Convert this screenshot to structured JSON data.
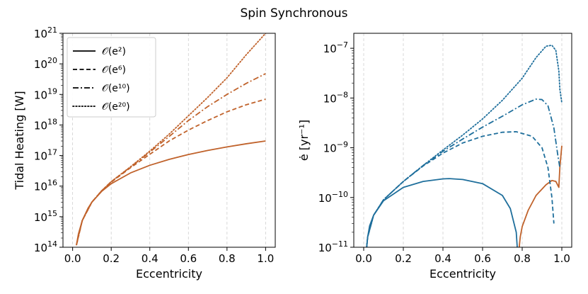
{
  "figure_title": "Spin Synchronous",
  "colors": {
    "orange": "#c0622b",
    "blue": "#1f6f9c"
  },
  "chart_data": [
    {
      "type": "line",
      "xlabel": "Eccentricity",
      "ylabel": "Tidal Heating [W]",
      "yscale": "log",
      "xlim": [
        -0.05,
        1.05
      ],
      "ylim": [
        100000000000000.0,
        1e+21
      ],
      "xticks": [
        "0.0",
        "0.2",
        "0.4",
        "0.6",
        "0.8",
        "1.0"
      ],
      "xtick_values": [
        0,
        0.2,
        0.4,
        0.6,
        0.8,
        1.0
      ],
      "ytick_exponents": [
        "14",
        "15",
        "16",
        "17",
        "18",
        "19",
        "20",
        "21"
      ],
      "grid": "vertical dashed",
      "legend_position": "upper-left",
      "legend": [
        {
          "label": "𝒪(e²)",
          "style": "solid"
        },
        {
          "label": "𝒪(e⁶)",
          "style": "dashed"
        },
        {
          "label": "𝒪(e¹⁰)",
          "style": "dashdot"
        },
        {
          "label": "𝒪(e²⁰)",
          "style": "dotted"
        }
      ],
      "series": [
        {
          "style": "solid",
          "color": "#c0622b",
          "x": [
            0.02,
            0.03,
            0.05,
            0.08,
            0.1,
            0.15,
            0.2,
            0.3,
            0.4,
            0.5,
            0.6,
            0.7,
            0.8,
            0.9,
            1.0
          ],
          "y": [
            120000000000000.0,
            270000000000000.0,
            750000000000000.0,
            1900000000000000.0,
            3000000000000000.0,
            6700000000000000.0,
            1.2e+16,
            2.7e+16,
            4.8e+16,
            7.5e+16,
            1.08e+17,
            1.47e+17,
            1.92e+17,
            2.43e+17,
            3e+17
          ]
        },
        {
          "style": "dashed",
          "color": "#c0622b",
          "x": [
            0.02,
            0.05,
            0.1,
            0.15,
            0.2,
            0.3,
            0.4,
            0.5,
            0.6,
            0.7,
            0.8,
            0.9,
            1.0
          ],
          "y": [
            120000000000000.0,
            750000000000000.0,
            3000000000000000.0,
            7000000000000000.0,
            1.35e+16,
            4e+16,
            1.1e+17,
            3e+17,
            6.8e+17,
            1.4e+18,
            2.7e+18,
            4.6e+18,
            7e+18
          ]
        },
        {
          "style": "dashdot",
          "color": "#c0622b",
          "x": [
            0.02,
            0.05,
            0.1,
            0.15,
            0.2,
            0.3,
            0.4,
            0.5,
            0.6,
            0.7,
            0.8,
            0.9,
            1.0
          ],
          "y": [
            120000000000000.0,
            750000000000000.0,
            3000000000000000.0,
            7000000000000000.0,
            1.4e+16,
            4.2e+16,
            1.3e+17,
            4.2e+17,
            1.4e+18,
            4e+18,
            1e+19,
            2.3e+19,
            4.8e+19
          ]
        },
        {
          "style": "dotted",
          "color": "#c0622b",
          "x": [
            0.02,
            0.05,
            0.1,
            0.15,
            0.2,
            0.3,
            0.4,
            0.5,
            0.6,
            0.7,
            0.8,
            0.9,
            1.0
          ],
          "y": [
            120000000000000.0,
            750000000000000.0,
            3000000000000000.0,
            7000000000000000.0,
            1.4e+16,
            4.3e+16,
            1.4e+17,
            5e+17,
            2e+18,
            8e+18,
            3.5e+19,
            2e+20,
            1e+21
          ]
        }
      ]
    },
    {
      "type": "line",
      "xlabel": "Eccentricity",
      "ylabel": "ė [yr⁻¹]",
      "yscale": "log",
      "xlim": [
        -0.05,
        1.05
      ],
      "ylim": [
        1e-11,
        2e-07
      ],
      "xticks": [
        "0.0",
        "0.2",
        "0.4",
        "0.6",
        "0.8",
        "1.0"
      ],
      "xtick_values": [
        0,
        0.2,
        0.4,
        0.6,
        0.8,
        1.0
      ],
      "ytick_exponents": [
        "−11",
        "−10",
        "−9",
        "−8",
        "−7"
      ],
      "ytick_values": [
        1e-11,
        1e-10,
        1e-09,
        1e-08,
        1e-07
      ],
      "grid": "vertical dashed",
      "series": [
        {
          "style": "solid",
          "color": "#1f6f9c",
          "x": [
            0.015,
            0.02,
            0.03,
            0.05,
            0.1,
            0.2,
            0.3,
            0.4,
            0.43,
            0.5,
            0.6,
            0.7,
            0.74,
            0.77,
            0.775
          ],
          "y": [
            1e-11,
            1.6e-11,
            2.7e-11,
            4.4e-11,
            8.6e-11,
            1.6e-10,
            2.1e-10,
            2.37e-10,
            2.4e-10,
            2.3e-10,
            1.9e-10,
            1.1e-10,
            6e-11,
            2e-11,
            1e-11
          ]
        },
        {
          "style": "solid",
          "color": "#c0622b",
          "x": [
            0.785,
            0.79,
            0.8,
            0.83,
            0.87,
            0.92,
            0.95,
            0.97,
            0.985,
            0.99,
            1.0
          ],
          "y": [
            1e-11,
            1.6e-11,
            2.6e-11,
            5.5e-11,
            1.1e-10,
            1.8e-10,
            2.2e-10,
            2.1e-10,
            1.6e-10,
            4e-10,
            1.1e-09
          ]
        },
        {
          "style": "dashed",
          "color": "#1f6f9c",
          "x": [
            0.015,
            0.02,
            0.05,
            0.1,
            0.2,
            0.3,
            0.4,
            0.5,
            0.6,
            0.7,
            0.77,
            0.85,
            0.9,
            0.93,
            0.95,
            0.96
          ],
          "y": [
            1e-11,
            1.6e-11,
            4.4e-11,
            9e-11,
            2.1e-10,
            4.3e-10,
            7.8e-10,
            1.25e-09,
            1.7e-09,
            2.05e-09,
            2.1e-09,
            1.7e-09,
            1e-09,
            4e-10,
            1e-10,
            3e-11
          ]
        },
        {
          "style": "dashdot",
          "color": "#1f6f9c",
          "x": [
            0.015,
            0.02,
            0.05,
            0.1,
            0.2,
            0.3,
            0.4,
            0.5,
            0.6,
            0.7,
            0.8,
            0.87,
            0.9,
            0.93,
            0.96,
            0.98,
            0.99
          ],
          "y": [
            1e-11,
            1.6e-11,
            4.4e-11,
            9e-11,
            2.1e-10,
            4.4e-10,
            8.5e-10,
            1.5e-09,
            2.6e-09,
            4.3e-09,
            7.3e-09,
            9.5e-09,
            9.3e-09,
            7e-09,
            2.5e-09,
            7e-10,
            4e-10
          ]
        },
        {
          "style": "dotted",
          "color": "#1f6f9c",
          "x": [
            0.015,
            0.02,
            0.05,
            0.1,
            0.2,
            0.3,
            0.4,
            0.5,
            0.6,
            0.7,
            0.8,
            0.87,
            0.92,
            0.95,
            0.97,
            0.985,
            0.99,
            1.0
          ],
          "y": [
            1e-11,
            1.6e-11,
            4.4e-11,
            9e-11,
            2.1e-10,
            4.4e-10,
            9e-10,
            1.8e-09,
            3.8e-09,
            9e-09,
            2.5e-08,
            6.5e-08,
            1.1e-07,
            1.15e-07,
            9e-08,
            3.5e-08,
            1.5e-08,
            8e-09
          ]
        }
      ]
    }
  ]
}
